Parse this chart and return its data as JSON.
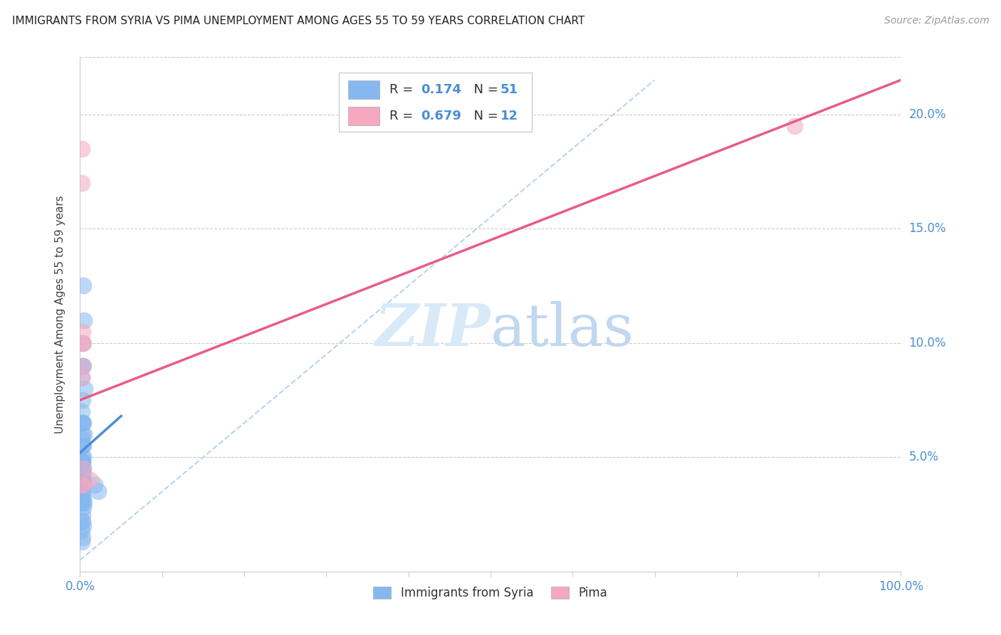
{
  "title": "IMMIGRANTS FROM SYRIA VS PIMA UNEMPLOYMENT AMONG AGES 55 TO 59 YEARS CORRELATION CHART",
  "source": "Source: ZipAtlas.com",
  "ylabel": "Unemployment Among Ages 55 to 59 years",
  "xlim": [
    0,
    1.0
  ],
  "ylim": [
    0,
    0.225
  ],
  "ytick_positions": [
    0.05,
    0.1,
    0.15,
    0.2
  ],
  "ytick_labels": [
    "5.0%",
    "10.0%",
    "15.0%",
    "20.0%"
  ],
  "blue_scatter_color": "#85b8f0",
  "pink_scatter_color": "#f5a8c0",
  "blue_line_color": "#4a8fd4",
  "pink_line_color": "#e85c85",
  "dashed_line_color": "#b8d4f0",
  "watermark_color": "#d8eaf8",
  "blue_scatter_x": [
    0.003,
    0.004,
    0.002,
    0.005,
    0.003,
    0.002,
    0.004,
    0.006,
    0.003,
    0.002,
    0.003,
    0.004,
    0.002,
    0.003,
    0.005,
    0.002,
    0.003,
    0.004,
    0.002,
    0.003,
    0.004,
    0.003,
    0.002,
    0.003,
    0.004,
    0.002,
    0.003,
    0.002,
    0.004,
    0.003,
    0.002,
    0.003,
    0.004,
    0.003,
    0.002,
    0.003,
    0.002,
    0.004,
    0.003,
    0.002,
    0.005,
    0.004,
    0.003,
    0.002,
    0.003,
    0.004,
    0.002,
    0.003,
    0.002,
    0.018,
    0.022
  ],
  "blue_scatter_y": [
    0.065,
    0.125,
    0.085,
    0.11,
    0.1,
    0.09,
    0.09,
    0.08,
    0.075,
    0.07,
    0.065,
    0.065,
    0.065,
    0.06,
    0.06,
    0.058,
    0.055,
    0.055,
    0.055,
    0.05,
    0.05,
    0.048,
    0.048,
    0.048,
    0.045,
    0.045,
    0.044,
    0.043,
    0.042,
    0.04,
    0.04,
    0.04,
    0.038,
    0.038,
    0.035,
    0.035,
    0.033,
    0.032,
    0.03,
    0.03,
    0.03,
    0.028,
    0.025,
    0.022,
    0.022,
    0.02,
    0.018,
    0.015,
    0.013,
    0.038,
    0.035
  ],
  "pink_scatter_x": [
    0.002,
    0.002,
    0.003,
    0.004,
    0.002,
    0.003,
    0.002,
    0.004,
    0.013,
    0.002,
    0.003,
    0.87
  ],
  "pink_scatter_y": [
    0.185,
    0.17,
    0.105,
    0.1,
    0.1,
    0.09,
    0.085,
    0.045,
    0.04,
    0.038,
    0.038,
    0.195
  ],
  "blue_line_x": [
    0.0,
    0.05
  ],
  "blue_line_y_start": 0.052,
  "blue_line_y_end": 0.068,
  "dashed_line_x": [
    0.0,
    0.7
  ],
  "dashed_line_y_start": 0.005,
  "dashed_line_y_end": 0.215,
  "pink_line_x": [
    0.0,
    1.0
  ],
  "pink_line_y_start": 0.075,
  "pink_line_y_end": 0.215
}
